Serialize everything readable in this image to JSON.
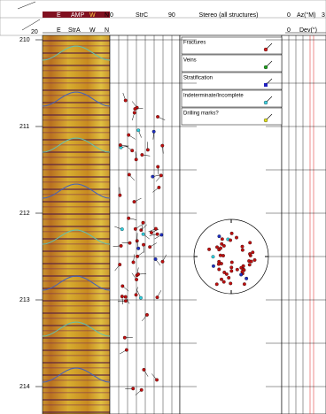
{
  "header": {
    "row1": {
      "image": [
        "E",
        "AMP",
        "W",
        "N"
      ],
      "tadpole": [
        "0",
        "StrC",
        "90"
      ],
      "stereo": "Stereo (all structures)",
      "azimuth": [
        "0",
        "Az(°M)",
        "3"
      ]
    },
    "row2": {
      "scale": "20",
      "image": [
        "E",
        "StrA",
        "W",
        "N"
      ],
      "deviation": [
        "0",
        "Dev(°)"
      ]
    }
  },
  "depths": [
    "210",
    "211",
    "212",
    "213",
    "214"
  ],
  "legend": [
    "Fractures",
    "Veins",
    "Stratification",
    "Indeterminate/Incomplete",
    "Drilling marks?"
  ]
}
